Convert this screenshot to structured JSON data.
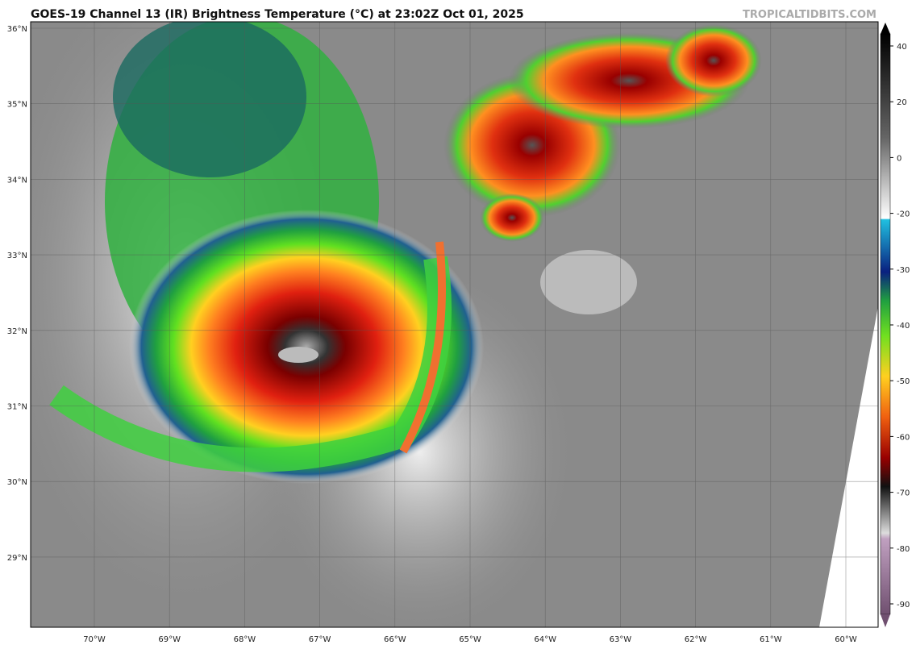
{
  "title": "GOES-19 Channel 13 (IR) Brightness Temperature (°C) at 23:02Z Oct 01, 2025",
  "source": "TROPICALTIDBITS.COM",
  "latitude_labels": [
    "36°N",
    "35°N",
    "34°N",
    "33°N",
    "32°N",
    "31°N",
    "30°N",
    "29°N"
  ],
  "longitude_labels": [
    "70°W",
    "69°W",
    "68°W",
    "67°W",
    "66°W",
    "65°W",
    "64°W",
    "63°W",
    "62°W",
    "61°W",
    "60°W"
  ],
  "colorbar_ticks": [
    40,
    20,
    0,
    -20,
    -30,
    -40,
    -50,
    -60,
    -70,
    -80,
    -90
  ]
}
